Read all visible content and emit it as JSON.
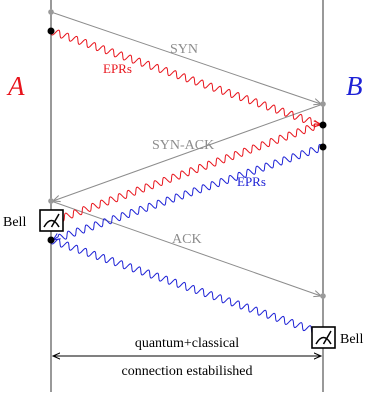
{
  "parties": {
    "left": {
      "label": "A",
      "color": "#e8141c"
    },
    "right": {
      "label": "B",
      "color": "#1e22d6"
    }
  },
  "messages": {
    "syn": {
      "label": "SYN",
      "color": "#8c8c8c"
    },
    "syn_ack": {
      "label": "SYN-ACK",
      "color": "#8c8c8c"
    },
    "ack": {
      "label": "ACK",
      "color": "#8c8c8c"
    }
  },
  "epr_streams": {
    "a_to_b": {
      "label": "EPRs",
      "color": "#e8141c"
    },
    "b_to_a": {
      "label": "EPRs",
      "color": "#1e22d6"
    }
  },
  "measurements": {
    "left_bell": {
      "label": "Bell",
      "icon": "bell-measurement-icon"
    },
    "right_bell": {
      "label": "Bell",
      "icon": "bell-measurement-icon"
    }
  },
  "connection": {
    "line1": "quantum+classical",
    "line2": "connection estabilished"
  }
}
